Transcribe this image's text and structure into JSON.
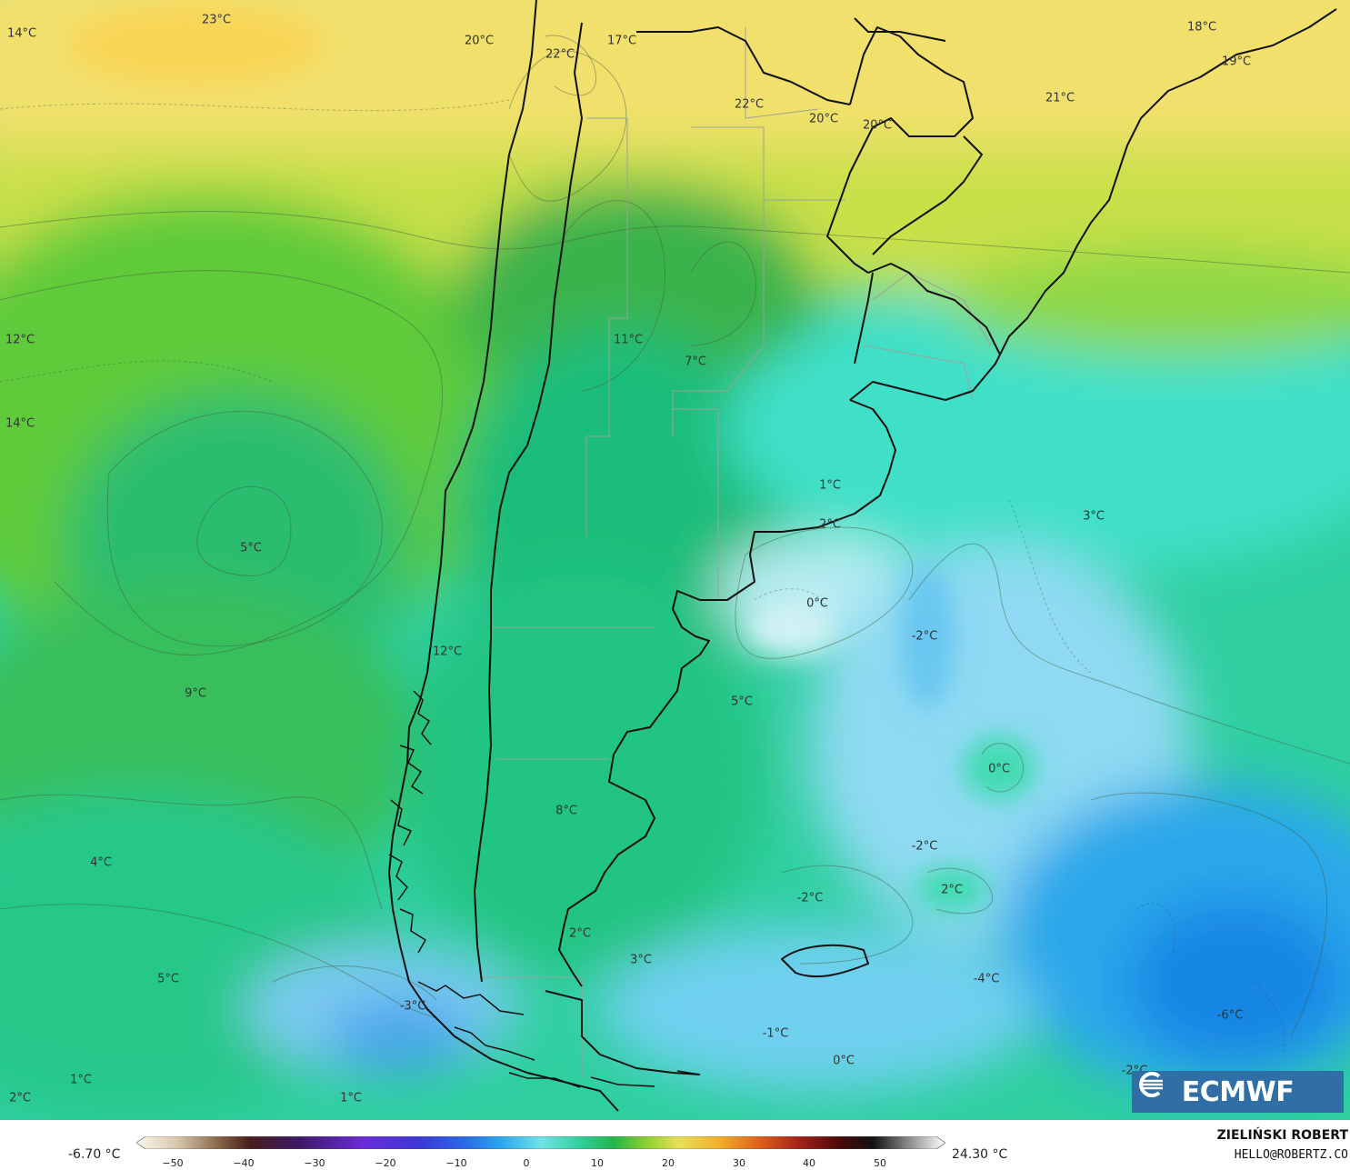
{
  "map": {
    "logo_text": "ECMWF",
    "labels": [
      {
        "text": "23°C"
      },
      {
        "text": "14°C"
      },
      {
        "text": "20°C"
      },
      {
        "text": "22°C"
      },
      {
        "text": "17°C"
      },
      {
        "text": "18°C"
      },
      {
        "text": "19°C"
      },
      {
        "text": "21°C"
      },
      {
        "text": "22°C"
      },
      {
        "text": "20°C"
      },
      {
        "text": "20°C"
      },
      {
        "text": "12°C"
      },
      {
        "text": "11°C"
      },
      {
        "text": "7°C"
      },
      {
        "text": "14°C"
      },
      {
        "text": "1°C"
      },
      {
        "text": "2°C"
      },
      {
        "text": "3°C"
      },
      {
        "text": "5°C"
      },
      {
        "text": "0°C"
      },
      {
        "text": "-2°C"
      },
      {
        "text": "12°C"
      },
      {
        "text": "9°C"
      },
      {
        "text": "5°C"
      },
      {
        "text": "0°C"
      },
      {
        "text": "8°C"
      },
      {
        "text": "4°C"
      },
      {
        "text": "-2°C"
      },
      {
        "text": "2°C"
      },
      {
        "text": "-2°C"
      },
      {
        "text": "2°C"
      },
      {
        "text": "3°C"
      },
      {
        "text": "5°C"
      },
      {
        "text": "-4°C"
      },
      {
        "text": "-3°C"
      },
      {
        "text": "-6°C"
      },
      {
        "text": "-1°C"
      },
      {
        "text": "0°C"
      },
      {
        "text": "-2°C"
      },
      {
        "text": "1°C"
      },
      {
        "text": "2°C"
      },
      {
        "text": "1°C"
      }
    ]
  },
  "legend": {
    "min_label": "-6.70 °C",
    "max_label": "24.30 °C",
    "ticks": [
      "−50",
      "−40",
      "−30",
      "−20",
      "−10",
      "0",
      "10",
      "20",
      "30",
      "40",
      "50"
    ]
  },
  "credit": {
    "name": "ZIELIŃSKI ROBERT",
    "email": "HELLO@ROBERTZ.CO"
  },
  "colors": {
    "warm": "#f6e27a",
    "mild": "#b5d93c",
    "green": "#3fbf45",
    "teal": "#1fcf95",
    "cyan": "#3de3d6",
    "cold": "#7fd3f5",
    "colder": "#2a9ce8",
    "land_border": "#111111"
  }
}
